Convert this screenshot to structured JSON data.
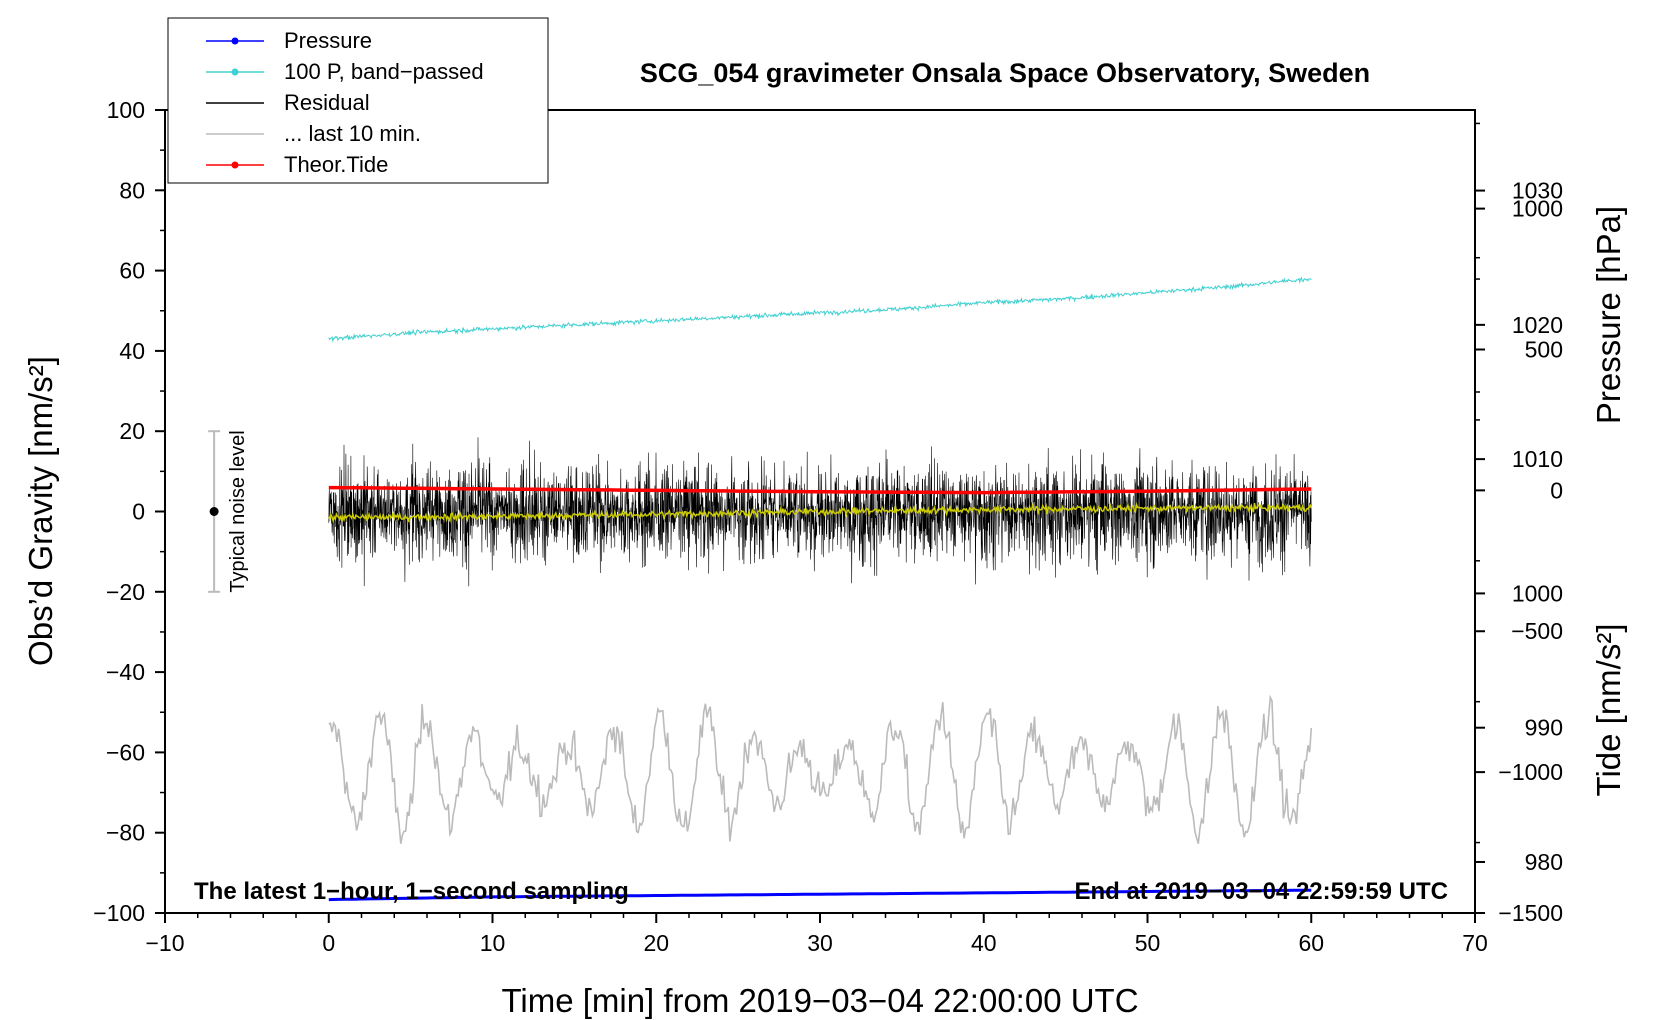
{
  "chart_data": {
    "type": "line",
    "title": "SCG_054 gravimeter Onsala Space Observatory, Sweden",
    "xlabel": "Time [min] from 2019−03−04 22:00:00 UTC",
    "ylabel_left": "Obs’d Gravity [nm/s²]",
    "ylabel_pressure": "Pressure [hPa]",
    "ylabel_tide": "Tide [nm/s²]",
    "xlim": [
      -10,
      70
    ],
    "ylim": [
      -100,
      100
    ],
    "x_ticks": [
      "−10",
      "0",
      "10",
      "20",
      "30",
      "40",
      "50",
      "60",
      "70"
    ],
    "y_ticks": [
      "−100",
      "−80",
      "−60",
      "−40",
      "−20",
      "0",
      "20",
      "40",
      "60",
      "80",
      "100"
    ],
    "pressure_axis": {
      "ticks": [
        "980",
        "990",
        "1000",
        "1010",
        "1020",
        "1030"
      ],
      "range_hpa": [
        976.2,
        1036.0
      ]
    },
    "tide_axis": {
      "ticks": [
        "−1500",
        "−1000",
        "−500",
        "0",
        "500",
        "1000"
      ],
      "range": [
        -1500,
        1350
      ]
    },
    "note_left": "The latest 1−hour, 1−second sampling",
    "note_right": "End at 2019−03−04 22:59:59 UTC",
    "noise_label": "Typical noise level",
    "noise_bar": {
      "x": -7,
      "center": 0,
      "low": -20,
      "high": 20
    },
    "legend": [
      {
        "label": "Pressure",
        "color": "#0000ff",
        "marker": true
      },
      {
        "label": "100 P, band−passed",
        "color": "#40d0d0",
        "marker": true
      },
      {
        "label": "Residual",
        "color": "#000000",
        "marker": false
      },
      {
        "label": "... last 10 min.",
        "color": "#bbbbbb",
        "marker": false
      },
      {
        "label": "Theor.Tide",
        "color": "#ff0000",
        "marker": true
      }
    ],
    "series": [
      {
        "name": "Pressure",
        "color": "#0000ff",
        "x": [
          0,
          10,
          20,
          30,
          40,
          50,
          60
        ],
        "y_hpa": [
          977.2,
          977.4,
          977.5,
          977.6,
          977.7,
          977.8,
          977.9
        ]
      },
      {
        "name": "100 P, band−passed",
        "color": "#40d0d0",
        "x": [
          0,
          5,
          10,
          15,
          20,
          25,
          30,
          35,
          40,
          45,
          50,
          55,
          60
        ],
        "y": [
          43,
          44.5,
          45.5,
          46.5,
          47.5,
          48.5,
          49.5,
          50.5,
          52,
          53,
          54.5,
          56,
          58
        ]
      },
      {
        "name": "Residual",
        "color": "#000000",
        "x": [
          0,
          10,
          20,
          30,
          40,
          50,
          60
        ],
        "y": [
          0,
          0,
          0,
          0,
          0,
          0,
          0
        ],
        "amplitude": 20
      },
      {
        "name": "Residual (smoothed)",
        "color": "#cccc00",
        "x": [
          0,
          10,
          20,
          30,
          40,
          50,
          60
        ],
        "y": [
          -1.5,
          -1.2,
          -0.7,
          0,
          0.5,
          0.8,
          1
        ]
      },
      {
        "name": "... last 10 min.",
        "color": "#bbbbbb",
        "x": [
          0,
          60
        ],
        "y_mean": -65,
        "amplitude": 15
      },
      {
        "name": "Theor.Tide",
        "color": "#ff0000",
        "x": [
          0,
          10,
          20,
          30,
          40,
          50,
          60
        ],
        "y_tide": [
          10,
          5,
          0,
          -5,
          -8,
          -3,
          5
        ]
      }
    ]
  }
}
